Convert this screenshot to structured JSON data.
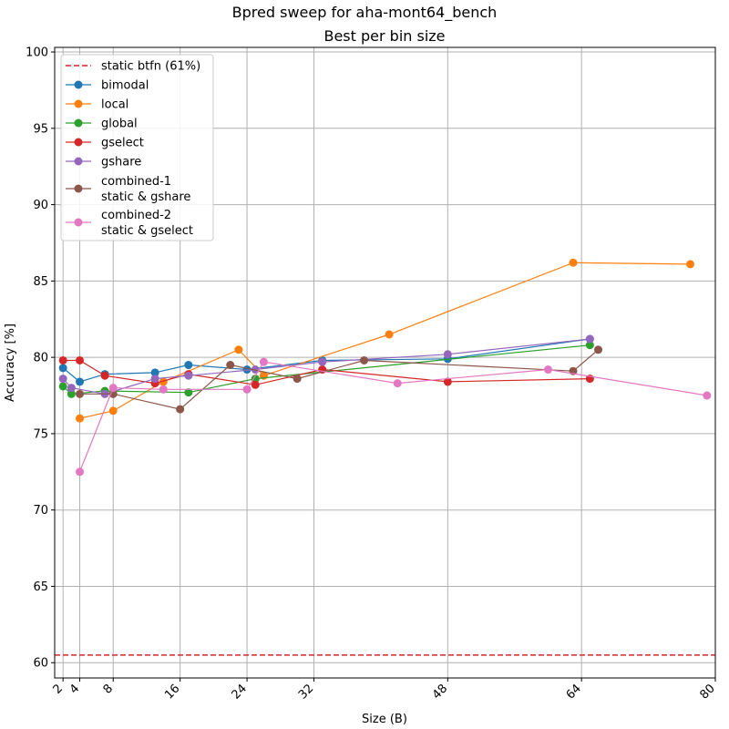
{
  "chart_data": {
    "type": "line",
    "title": "Bpred sweep for aha-mont64_bench",
    "subtitle": "Best per bin size",
    "xlabel": "Size (B)",
    "ylabel": "Accuracy [%]",
    "xlim": [
      1,
      80
    ],
    "ylim": [
      59,
      100.3
    ],
    "xticks": [
      2,
      4,
      8,
      16,
      24,
      32,
      48,
      64,
      80
    ],
    "yticks": [
      60,
      65,
      70,
      75,
      80,
      85,
      90,
      95,
      100
    ],
    "grid": true,
    "legend_position": "top-left",
    "reference_line": {
      "label": "static btfn (61%)",
      "value": 60.5,
      "color": "#d62728",
      "style": "dashed"
    },
    "series": [
      {
        "name": "bimodal",
        "color": "#1f77b4",
        "points": [
          [
            2,
            79.3
          ],
          [
            4,
            78.4
          ],
          [
            7,
            78.9
          ],
          [
            13,
            79.0
          ],
          [
            17,
            79.5
          ],
          [
            24,
            79.2
          ],
          [
            33,
            79.8
          ],
          [
            48,
            79.9
          ],
          [
            65,
            81.2
          ]
        ]
      },
      {
        "name": "local",
        "color": "#ff7f0e",
        "points": [
          [
            4,
            76.0
          ],
          [
            8,
            76.5
          ],
          [
            14,
            78.4
          ],
          [
            23,
            80.5
          ],
          [
            26,
            78.8
          ],
          [
            41,
            81.5
          ],
          [
            63,
            86.2
          ],
          [
            77,
            86.1
          ]
        ]
      },
      {
        "name": "global",
        "color": "#2ca02c",
        "points": [
          [
            2,
            78.1
          ],
          [
            3,
            77.6
          ],
          [
            7,
            77.8
          ],
          [
            17,
            77.7
          ],
          [
            25,
            78.6
          ],
          [
            65,
            80.8
          ]
        ]
      },
      {
        "name": "gselect",
        "color": "#d62728",
        "points": [
          [
            2,
            79.8
          ],
          [
            4,
            79.8
          ],
          [
            7,
            78.8
          ],
          [
            13,
            78.3
          ],
          [
            17,
            78.9
          ],
          [
            25,
            78.2
          ],
          [
            33,
            79.2
          ],
          [
            48,
            78.4
          ],
          [
            65,
            78.6
          ]
        ]
      },
      {
        "name": "gshare",
        "color": "#9467bd",
        "points": [
          [
            2,
            78.6
          ],
          [
            3,
            78.0
          ],
          [
            7,
            77.6
          ],
          [
            13,
            78.6
          ],
          [
            17,
            78.8
          ],
          [
            25,
            79.2
          ],
          [
            33,
            79.7
          ],
          [
            48,
            80.2
          ],
          [
            65,
            81.2
          ]
        ]
      },
      {
        "name": "combined-1\nstatic & gshare",
        "color": "#8c564b",
        "points": [
          [
            4,
            77.6
          ],
          [
            8,
            77.6
          ],
          [
            16,
            76.6
          ],
          [
            22,
            79.5
          ],
          [
            30,
            78.6
          ],
          [
            38,
            79.8
          ],
          [
            63,
            79.1
          ],
          [
            66,
            80.5
          ]
        ]
      },
      {
        "name": "combined-2\nstatic & gselect",
        "color": "#e377c2",
        "points": [
          [
            4,
            72.5
          ],
          [
            8,
            78.0
          ],
          [
            14,
            77.9
          ],
          [
            24,
            77.9
          ],
          [
            26,
            79.7
          ],
          [
            42,
            78.3
          ],
          [
            60,
            79.2
          ],
          [
            79,
            77.5
          ]
        ]
      }
    ]
  }
}
